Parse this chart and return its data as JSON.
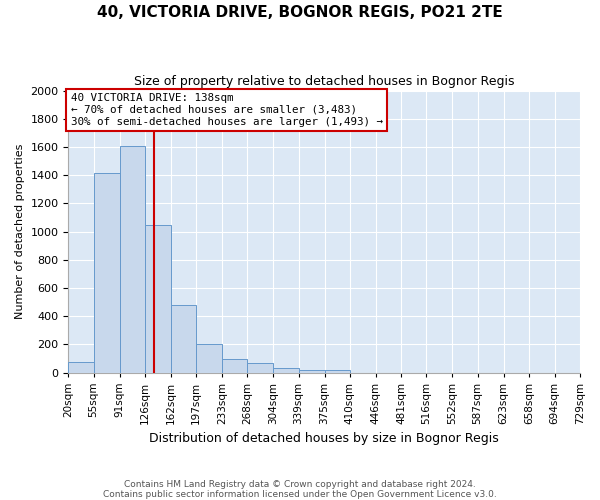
{
  "title": "40, VICTORIA DRIVE, BOGNOR REGIS, PO21 2TE",
  "subtitle": "Size of property relative to detached houses in Bognor Regis",
  "xlabel": "Distribution of detached houses by size in Bognor Regis",
  "ylabel": "Number of detached properties",
  "footnote1": "Contains HM Land Registry data © Crown copyright and database right 2024.",
  "footnote2": "Contains public sector information licensed under the Open Government Licence v3.0.",
  "bin_labels": [
    "20sqm",
    "55sqm",
    "91sqm",
    "126sqm",
    "162sqm",
    "197sqm",
    "233sqm",
    "268sqm",
    "304sqm",
    "339sqm",
    "375sqm",
    "410sqm",
    "446sqm",
    "481sqm",
    "516sqm",
    "552sqm",
    "587sqm",
    "623sqm",
    "658sqm",
    "694sqm",
    "729sqm"
  ],
  "bin_edges": [
    20,
    55,
    91,
    126,
    162,
    197,
    233,
    268,
    304,
    339,
    375,
    410,
    446,
    481,
    516,
    552,
    587,
    623,
    658,
    694,
    729
  ],
  "bar_heights": [
    75,
    1415,
    1610,
    1045,
    480,
    205,
    95,
    65,
    30,
    20,
    15,
    0,
    0,
    0,
    0,
    0,
    0,
    0,
    0,
    0
  ],
  "bar_color": "#c8d8ec",
  "bar_edge_color": "#6699cc",
  "red_line_x": 138,
  "ylim": [
    0,
    2000
  ],
  "yticks": [
    0,
    200,
    400,
    600,
    800,
    1000,
    1200,
    1400,
    1600,
    1800,
    2000
  ],
  "annotation_title": "40 VICTORIA DRIVE: 138sqm",
  "annotation_line1": "← 70% of detached houses are smaller (3,483)",
  "annotation_line2": "30% of semi-detached houses are larger (1,493) →",
  "annotation_box_facecolor": "white",
  "annotation_box_edgecolor": "#cc0000",
  "background_color": "#dce8f5",
  "grid_color": "white",
  "title_fontsize": 11,
  "subtitle_fontsize": 9,
  "ylabel_fontsize": 8,
  "xlabel_fontsize": 9,
  "footnote_fontsize": 6.5
}
